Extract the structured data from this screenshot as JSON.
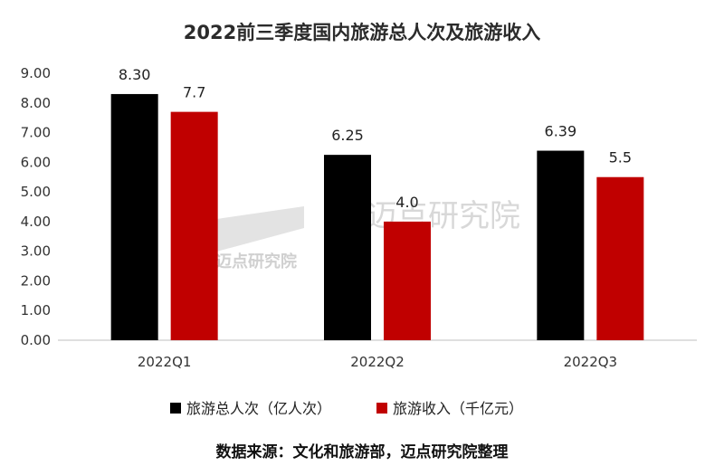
{
  "chart_data": {
    "type": "bar",
    "title": "2022前三季度国内旅游总人次及旅游收入",
    "categories": [
      "2022Q1",
      "2022Q2",
      "2022Q3"
    ],
    "series": [
      {
        "name": "旅游总人次（亿人次）",
        "values": [
          8.3,
          6.25,
          6.39
        ],
        "labels": [
          "8.30",
          "6.25",
          "6.39"
        ],
        "color": "#000000"
      },
      {
        "name": "旅游收入（千亿元）",
        "values": [
          7.7,
          4.0,
          5.5
        ],
        "labels": [
          "7.7",
          "4.0",
          "5.5"
        ],
        "color": "#c00000"
      }
    ],
    "ylim": [
      0,
      9
    ],
    "yticks": [
      "0.00",
      "1.00",
      "2.00",
      "3.00",
      "4.00",
      "5.00",
      "6.00",
      "7.00",
      "8.00",
      "9.00"
    ],
    "grid": false,
    "legend_position": "bottom"
  },
  "source": "数据来源：文化和旅游部，迈点研究院整理",
  "watermark": {
    "brand": "迈点研究院",
    "brand_small": "迈点研究院"
  }
}
